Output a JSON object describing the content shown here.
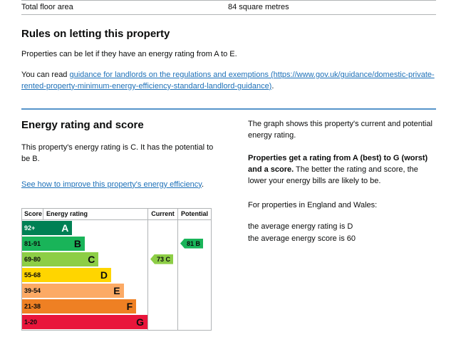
{
  "summary_row": {
    "label": "Total floor area",
    "value": "84 square metres"
  },
  "letting_section": {
    "heading": "Rules on letting this property",
    "intro": "Properties can be let if they have an energy rating from A to E.",
    "guidance_prefix": "You can read ",
    "guidance_link": "guidance for landlords on the regulations and exemptions (https://www.gov.uk/guidance/domestic-private-rented-property-minimum-energy-efficiency-standard-landlord-guidance)",
    "guidance_suffix": "."
  },
  "rating_section": {
    "heading": "Energy rating and score",
    "summary": "This property's energy rating is C. It has the potential to be B.",
    "improve_link": "See how to improve this property's energy efficiency",
    "improve_suffix": "."
  },
  "sidebar_text": {
    "graph_intro": "The graph shows this property's current and potential energy rating.",
    "rating_explain_bold": "Properties get a rating from A (best) to G (worst) and a score.",
    "rating_explain_rest": " The better the rating and score, the lower your energy bills are likely to be.",
    "regions_intro": "For properties in England and Wales:",
    "avg_rating": "the average energy rating is D",
    "avg_score": "the average energy score is 60"
  },
  "chart": {
    "type": "epc-rating-bands",
    "headers": {
      "score": "Score",
      "rating": "Energy rating",
      "current": "Current",
      "potential": "Potential"
    },
    "bands": [
      {
        "score": "92+",
        "letter": "A",
        "color": "#008054",
        "text_color": "#ffffff",
        "width_pct": 40
      },
      {
        "score": "81-91",
        "letter": "B",
        "color": "#19b459",
        "width_pct": 50
      },
      {
        "score": "69-80",
        "letter": "C",
        "color": "#8dce46",
        "width_pct": 61
      },
      {
        "score": "55-68",
        "letter": "D",
        "color": "#ffd500",
        "width_pct": 71
      },
      {
        "score": "39-54",
        "letter": "E",
        "color": "#fcaa65",
        "width_pct": 81
      },
      {
        "score": "21-38",
        "letter": "F",
        "color": "#ef8023",
        "width_pct": 91
      },
      {
        "score": "1-20",
        "letter": "G",
        "color": "#e9153b",
        "width_pct": 100
      }
    ],
    "current": {
      "label": "73 C",
      "score": 73,
      "letter": "C",
      "color": "#8dce46",
      "band_index": 2
    },
    "potential": {
      "label": "81 B",
      "score": 81,
      "letter": "B",
      "color": "#19b459",
      "band_index": 1
    }
  },
  "colors": {
    "link": "#1d70b8",
    "section_rule": "#5694ca",
    "table_border": "#b1b4b6"
  }
}
